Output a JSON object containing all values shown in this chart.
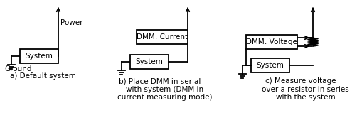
{
  "bg_color": "#ffffff",
  "figsize": [
    5.09,
    1.97
  ],
  "dpi": 100,
  "captions": [
    "a) Default system",
    "b) Place DMM in serial\n    with system (DMM in\n    current measuring mode)",
    "c) Measure voltage\n    over a resistor in series\n    with the system"
  ],
  "power_label": "Power",
  "ground_label": "Ground",
  "lw": 1.3
}
